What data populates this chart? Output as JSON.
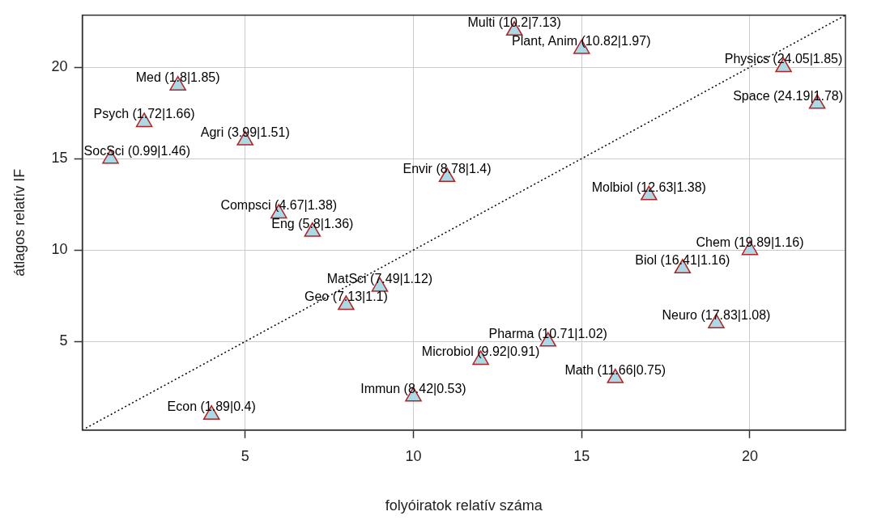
{
  "chart_data": {
    "type": "scatter",
    "xlabel": "folyóiratok relatív száma",
    "ylabel": "átlagos relatív IF",
    "xlim": [
      0.16,
      22.84
    ],
    "ylim": [
      0.16,
      22.84
    ],
    "xticks": [
      5,
      10,
      15,
      20
    ],
    "yticks": [
      5,
      10,
      15,
      20
    ],
    "grid": true,
    "legend": false,
    "series": [
      {
        "color": "#add8e6",
        "marker": "triangle",
        "x": [
          4,
          10,
          16,
          12,
          14,
          19,
          8,
          9,
          18,
          20,
          7,
          6,
          17,
          11,
          1,
          5,
          2,
          22,
          3,
          21,
          15,
          13
        ],
        "values": [
          1,
          2,
          3,
          4,
          5,
          6,
          7,
          8,
          9,
          10,
          11,
          12,
          13,
          14,
          15,
          16,
          17,
          18,
          19,
          20,
          21,
          22
        ],
        "value_labels": [
          "Econ (1.89|0.4)",
          "Immun (8.42|0.53)",
          "Math (11.66|0.75)",
          "Microbiol (9.92|0.91)",
          "Pharma (10.71|1.02)",
          "Neuro (17.83|1.08)",
          "Geo (7.13|1.1)",
          "MatSci (7.49|1.12)",
          "Biol (16.41|1.16)",
          "Chem (19.89|1.16)",
          "Eng (5.8|1.36)",
          "Compsci (4.67|1.38)",
          "Molbiol (12.63|1.38)",
          "Envir (8.78|1.4)",
          "SocSci (0.99|1.46)",
          "Agri (3.99|1.51)",
          "Psych (1.72|1.66)",
          "Space (24.19|1.78)",
          "Med (1.8|1.85)",
          "Physics (24.05|1.85)",
          "Plant, Anim (10.82|1.97)",
          "Multi (10.2|7.13)"
        ]
      },
      {
        "type": "line",
        "marker": "none",
        "color": "#000000",
        "line_style": "dotted",
        "x": [
          0.16,
          22.84
        ],
        "values": [
          0.16,
          22.84
        ]
      }
    ]
  }
}
